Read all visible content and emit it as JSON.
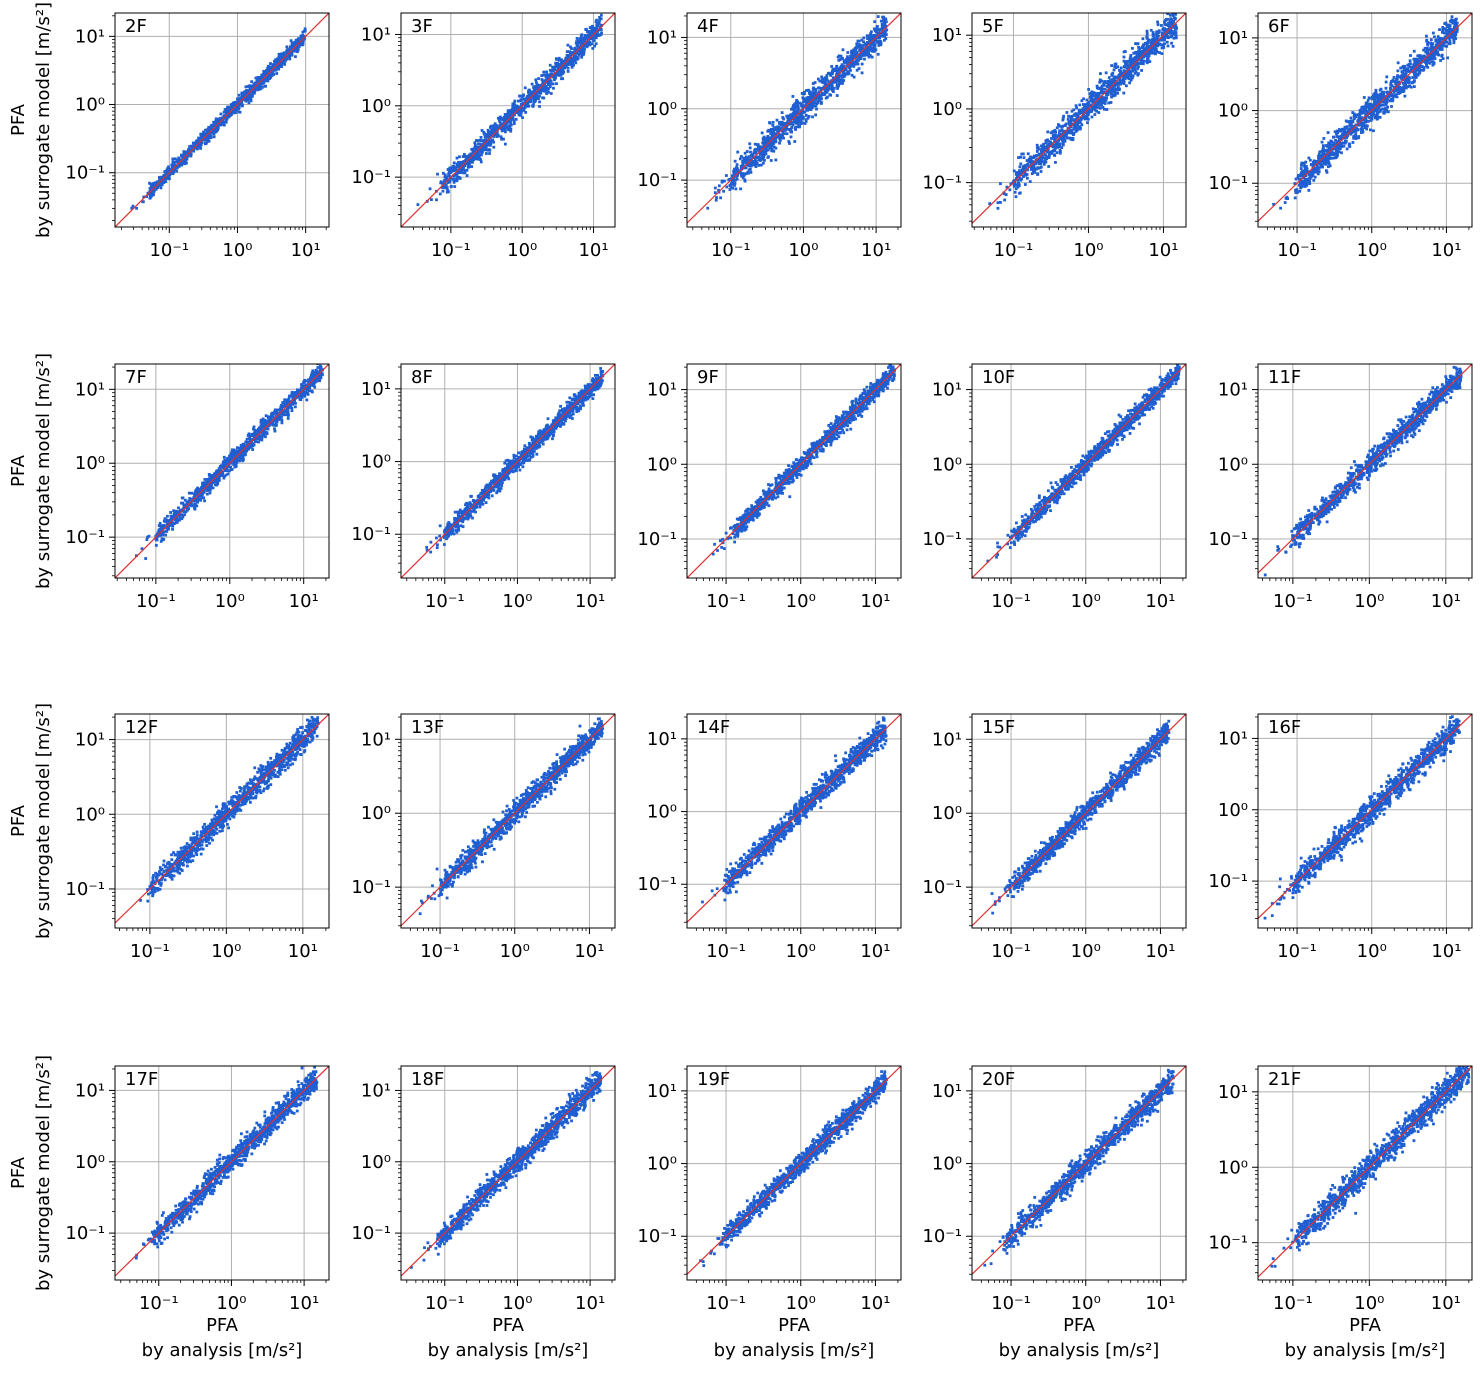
{
  "chart_data": {
    "type": "scatter",
    "rows": 4,
    "cols": 5,
    "xscale": "log",
    "yscale": "log",
    "grid": true,
    "marker_color": "#1f5fd1",
    "reference_line_color": "#e03030",
    "reference_line": "y = x",
    "xlabel": [
      "PFA",
      "by analysis [m/s²]"
    ],
    "ylabel": [
      "PFA",
      "by surrogate model [m/s²]"
    ],
    "x_ticks": [
      "10⁻¹",
      "10⁰",
      "10¹"
    ],
    "y_ticks": [
      "10⁻¹",
      "10⁰",
      "10¹"
    ],
    "panels": [
      {
        "title": "2F",
        "xlim": [
          0.016,
          22
        ],
        "ylim": [
          0.016,
          22
        ],
        "xmin": 0.02,
        "xmax": 10,
        "spread": 0.05
      },
      {
        "title": "3F",
        "xlim": [
          0.02,
          20
        ],
        "ylim": [
          0.02,
          20
        ],
        "xmin": 0.03,
        "xmax": 13,
        "spread": 0.08
      },
      {
        "title": "4F",
        "xlim": [
          0.025,
          22
        ],
        "ylim": [
          0.022,
          22
        ],
        "xmin": 0.04,
        "xmax": 14,
        "spread": 0.1
      },
      {
        "title": "5F",
        "xlim": [
          0.028,
          20
        ],
        "ylim": [
          0.025,
          20
        ],
        "xmin": 0.04,
        "xmax": 15,
        "spread": 0.1
      },
      {
        "title": "6F",
        "xlim": [
          0.03,
          22
        ],
        "ylim": [
          0.025,
          22
        ],
        "xmin": 0.04,
        "xmax": 14,
        "spread": 0.1
      },
      {
        "title": "7F",
        "xlim": [
          0.028,
          22
        ],
        "ylim": [
          0.028,
          22
        ],
        "xmin": 0.04,
        "xmax": 18,
        "spread": 0.06
      },
      {
        "title": "8F",
        "xlim": [
          0.025,
          22
        ],
        "ylim": [
          0.025,
          22
        ],
        "xmin": 0.04,
        "xmax": 15,
        "spread": 0.06
      },
      {
        "title": "9F",
        "xlim": [
          0.03,
          22
        ],
        "ylim": [
          0.03,
          22
        ],
        "xmin": 0.05,
        "xmax": 18,
        "spread": 0.06
      },
      {
        "title": "10F",
        "xlim": [
          0.03,
          22
        ],
        "ylim": [
          0.03,
          22
        ],
        "xmin": 0.04,
        "xmax": 18,
        "spread": 0.06
      },
      {
        "title": "11F",
        "xlim": [
          0.035,
          22
        ],
        "ylim": [
          0.03,
          22
        ],
        "xmin": 0.04,
        "xmax": 16,
        "spread": 0.07
      },
      {
        "title": "12F",
        "xlim": [
          0.035,
          22
        ],
        "ylim": [
          0.03,
          22
        ],
        "xmin": 0.04,
        "xmax": 16,
        "spread": 0.08
      },
      {
        "title": "13F",
        "xlim": [
          0.03,
          22
        ],
        "ylim": [
          0.028,
          22
        ],
        "xmin": 0.04,
        "xmax": 15,
        "spread": 0.08
      },
      {
        "title": "14F",
        "xlim": [
          0.03,
          22
        ],
        "ylim": [
          0.025,
          22
        ],
        "xmin": 0.04,
        "xmax": 14,
        "spread": 0.08
      },
      {
        "title": "15F",
        "xlim": [
          0.03,
          22
        ],
        "ylim": [
          0.028,
          22
        ],
        "xmin": 0.04,
        "xmax": 13,
        "spread": 0.07
      },
      {
        "title": "16F",
        "xlim": [
          0.03,
          22
        ],
        "ylim": [
          0.022,
          22
        ],
        "xmin": 0.035,
        "xmax": 15,
        "spread": 0.09
      },
      {
        "title": "17F",
        "xlim": [
          0.025,
          22
        ],
        "ylim": [
          0.022,
          22
        ],
        "xmin": 0.035,
        "xmax": 15,
        "spread": 0.08
      },
      {
        "title": "18F",
        "xlim": [
          0.025,
          22
        ],
        "ylim": [
          0.022,
          22
        ],
        "xmin": 0.03,
        "xmax": 14,
        "spread": 0.08
      },
      {
        "title": "19F",
        "xlim": [
          0.03,
          22
        ],
        "ylim": [
          0.025,
          22
        ],
        "xmin": 0.035,
        "xmax": 14,
        "spread": 0.07
      },
      {
        "title": "20F",
        "xlim": [
          0.03,
          22
        ],
        "ylim": [
          0.025,
          22
        ],
        "xmin": 0.035,
        "xmax": 15,
        "spread": 0.08
      },
      {
        "title": "21F",
        "xlim": [
          0.035,
          22
        ],
        "ylim": [
          0.032,
          22
        ],
        "xmin": 0.04,
        "xmax": 20,
        "spread": 0.09
      }
    ]
  }
}
